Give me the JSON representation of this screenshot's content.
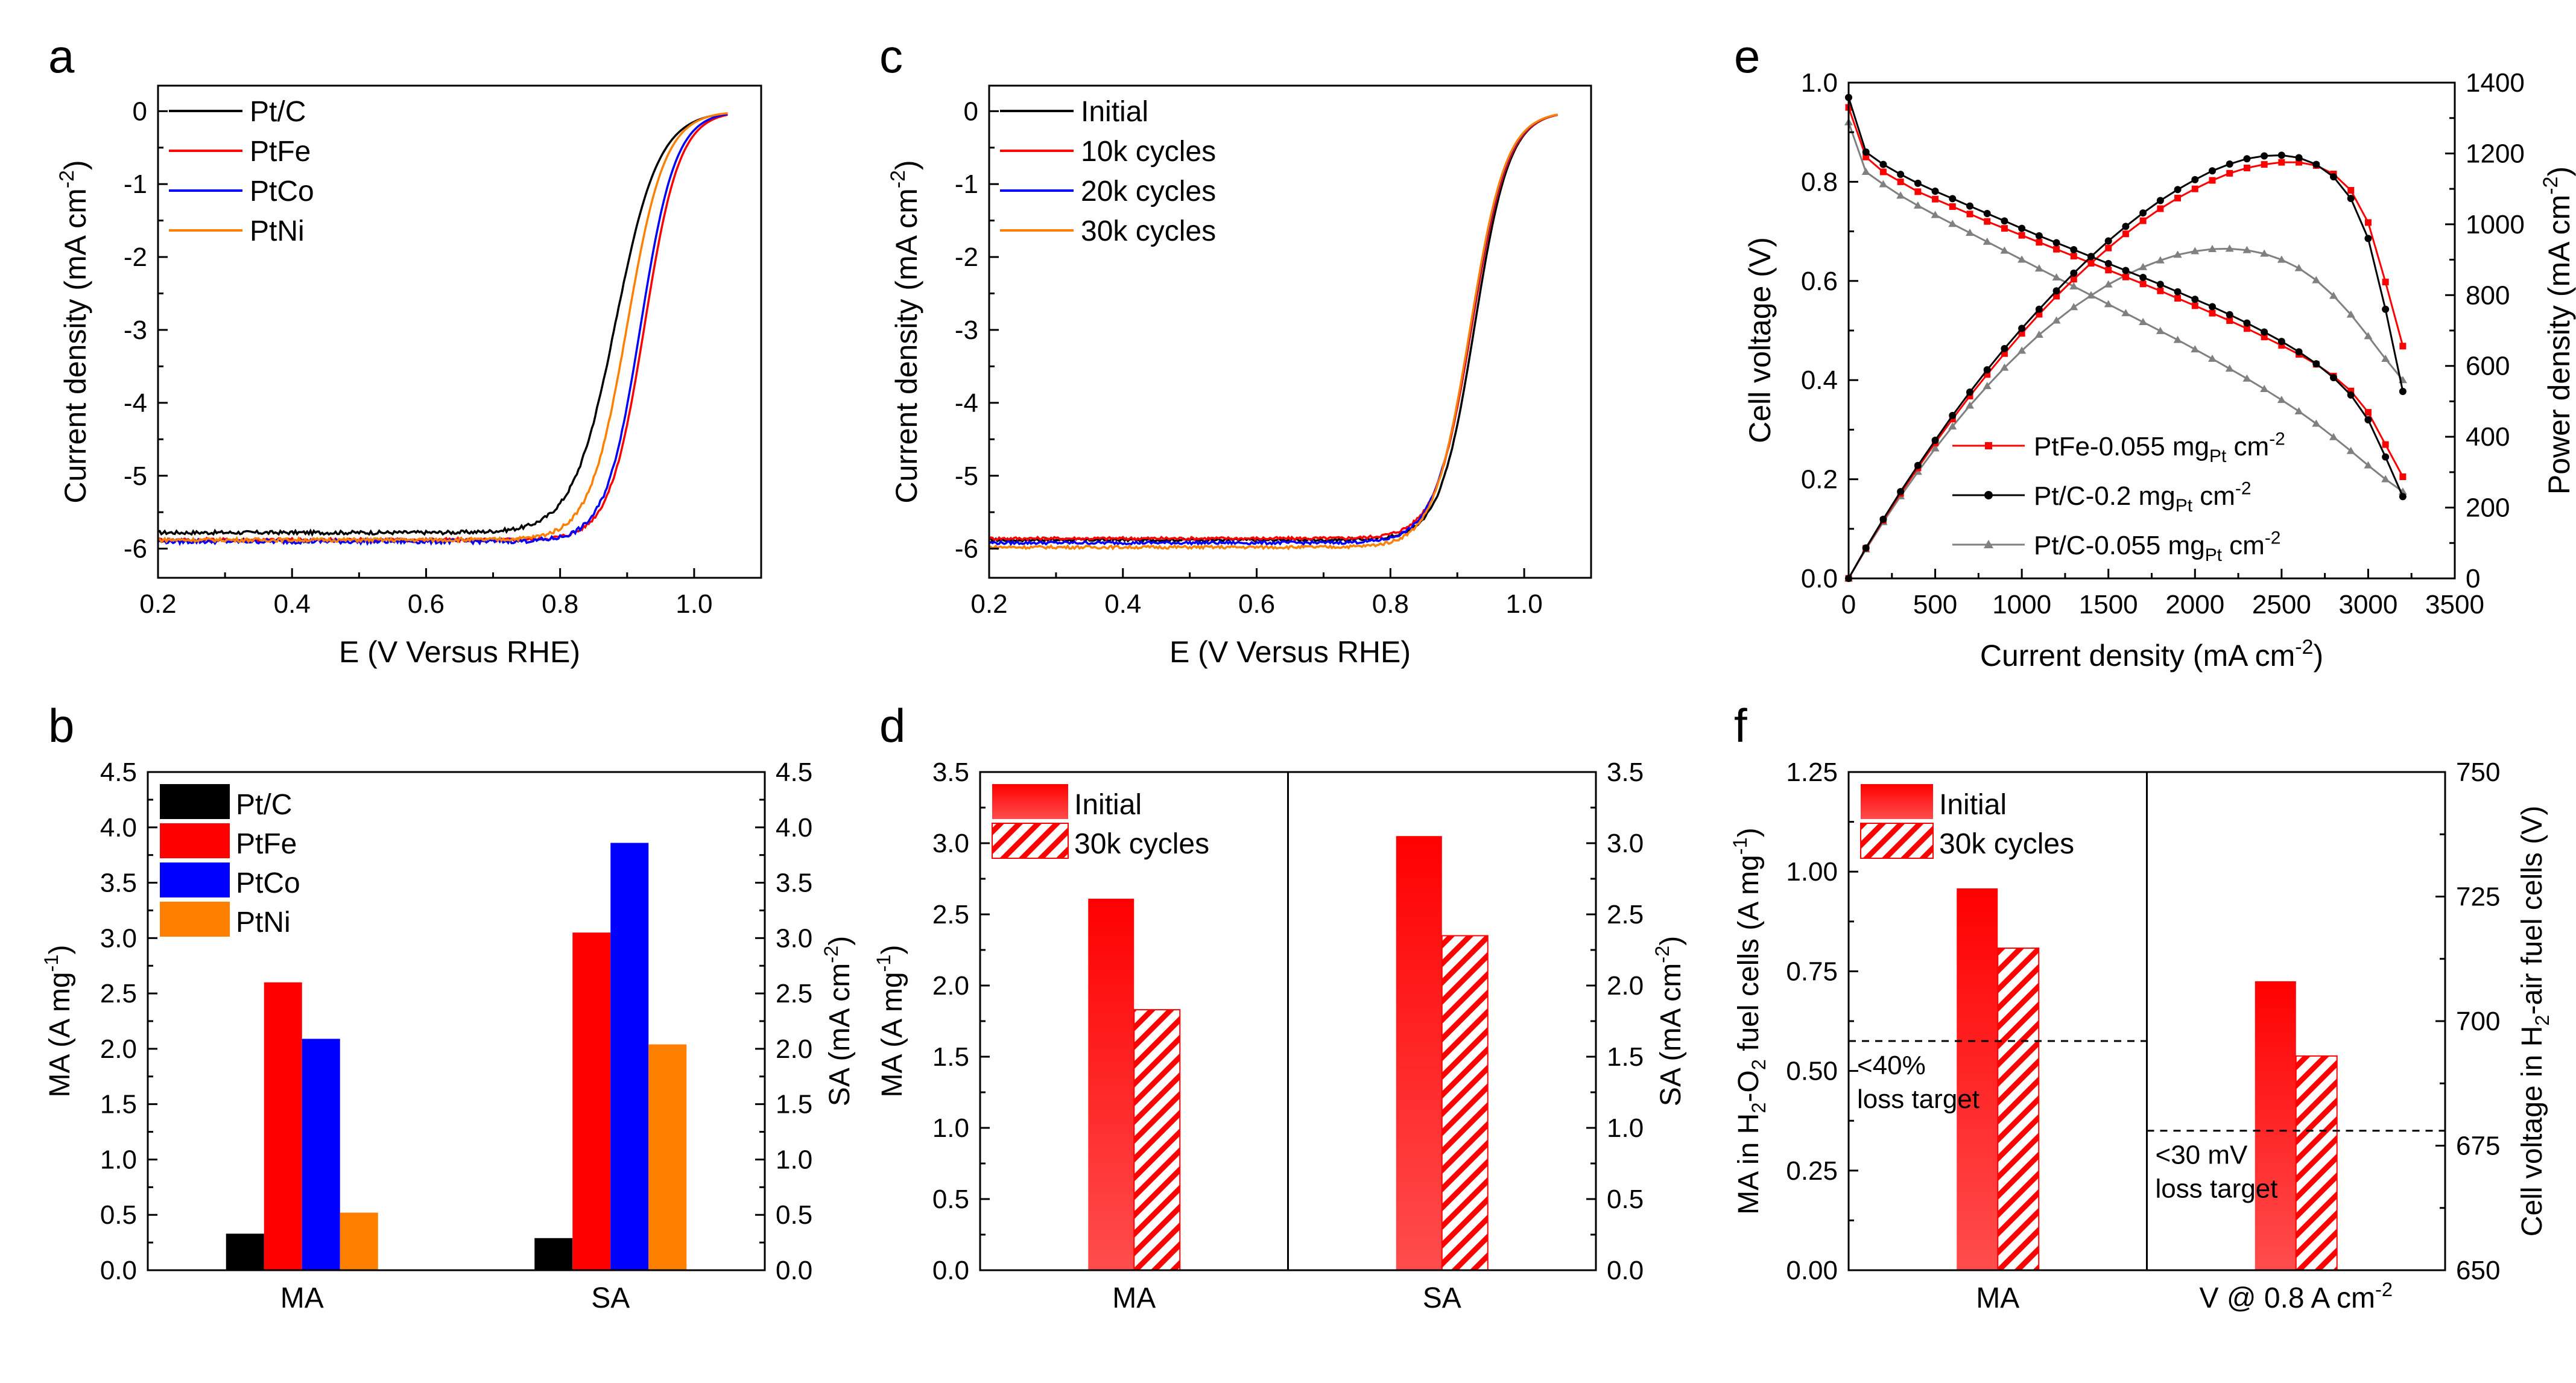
{
  "figure": {
    "panel_letters": [
      "a",
      "b",
      "c",
      "d",
      "e",
      "f"
    ]
  },
  "chart_data": [
    {
      "id": "a",
      "type": "line",
      "xlabel": "E (V Versus RHE)",
      "ylabel": "Current density (mA cm-2)",
      "xlim": [
        0.2,
        1.1
      ],
      "ylim": [
        -6.4,
        0.35
      ],
      "xticks": [
        "0.2",
        "0.4",
        "0.6",
        "0.8",
        "1.0"
      ],
      "xtick_values": [
        0.2,
        0.4,
        0.6,
        0.8,
        1.0
      ],
      "yticks": [
        "0",
        "-1",
        "-2",
        "-3",
        "-4",
        "-5",
        "-6"
      ],
      "ytick_values": [
        0,
        -1,
        -2,
        -3,
        -4,
        -5,
        -6
      ],
      "legend_position": "top-left",
      "series": [
        {
          "name": "Pt/C",
          "color": "#000000",
          "limit": -5.78,
          "half_wave": 0.883,
          "slope": 0.032,
          "x_start": 0.2,
          "x_end": 1.05,
          "noise": 0.025
        },
        {
          "name": "PtFe",
          "color": "#ff0000",
          "limit": -5.88,
          "half_wave": 0.926,
          "slope": 0.026,
          "x_start": 0.2,
          "x_end": 1.05,
          "noise": 0.025
        },
        {
          "name": "PtCo",
          "color": "#0000ff",
          "limit": -5.9,
          "half_wave": 0.92,
          "slope": 0.026,
          "x_start": 0.2,
          "x_end": 1.05,
          "noise": 0.03
        },
        {
          "name": "PtNi",
          "color": "#ff8000",
          "limit": -5.88,
          "half_wave": 0.9,
          "slope": 0.028,
          "x_start": 0.2,
          "x_end": 1.05,
          "noise": 0.025
        }
      ]
    },
    {
      "id": "c",
      "type": "line",
      "xlabel": "E (V Versus RHE)",
      "ylabel": "Current density (mA cm-2)",
      "xlim": [
        0.2,
        1.1
      ],
      "ylim": [
        -6.4,
        0.35
      ],
      "xticks": [
        "0.2",
        "0.4",
        "0.6",
        "0.8",
        "1.0"
      ],
      "xtick_values": [
        0.2,
        0.4,
        0.6,
        0.8,
        1.0
      ],
      "yticks": [
        "0",
        "-1",
        "-2",
        "-3",
        "-4",
        "-5",
        "-6"
      ],
      "ytick_values": [
        0,
        -1,
        -2,
        -3,
        -4,
        -5,
        -6
      ],
      "legend_position": "top-left",
      "series": [
        {
          "name": "Initial",
          "color": "#000000",
          "limit": -5.88,
          "half_wave": 0.926,
          "slope": 0.026,
          "x_start": 0.2,
          "x_end": 1.05,
          "noise": 0.02
        },
        {
          "name": "10k cycles",
          "color": "#ff0000",
          "limit": -5.86,
          "half_wave": 0.922,
          "slope": 0.027,
          "x_start": 0.2,
          "x_end": 1.05,
          "noise": 0.02
        },
        {
          "name": "20k cycles",
          "color": "#0000ff",
          "limit": -5.92,
          "half_wave": 0.92,
          "slope": 0.027,
          "x_start": 0.2,
          "x_end": 1.05,
          "noise": 0.02
        },
        {
          "name": "30k cycles",
          "color": "#ff8000",
          "limit": -5.98,
          "half_wave": 0.919,
          "slope": 0.027,
          "x_start": 0.2,
          "x_end": 1.05,
          "noise": 0.02
        }
      ]
    },
    {
      "id": "e",
      "type": "line",
      "xlabel": "Current density (mA cm-2)",
      "ylabel": "Cell voltage (V)",
      "ylabel_right": "Power density (mA cm-2)",
      "xlim": [
        0,
        3500
      ],
      "ylim": [
        0,
        1.0
      ],
      "ylim_right": [
        0,
        1400
      ],
      "xticks": [
        "0",
        "500",
        "1000",
        "1500",
        "2000",
        "2500",
        "3000",
        "3500"
      ],
      "xtick_values": [
        0,
        500,
        1000,
        1500,
        2000,
        2500,
        3000,
        3500
      ],
      "yticks": [
        "0.0",
        "0.2",
        "0.4",
        "0.6",
        "0.8",
        "1.0"
      ],
      "ytick_values": [
        0,
        0.2,
        0.4,
        0.6,
        0.8,
        1.0
      ],
      "yticks_right": [
        "0",
        "200",
        "400",
        "600",
        "800",
        "1000",
        "1200",
        "1400"
      ],
      "ytick_values_right": [
        0,
        200,
        400,
        600,
        800,
        1000,
        1200,
        1400
      ],
      "legend_position": "bottom-left",
      "current_density": [
        0,
        100,
        200,
        300,
        400,
        500,
        600,
        700,
        800,
        900,
        1000,
        1100,
        1200,
        1300,
        1400,
        1500,
        1600,
        1700,
        1800,
        1900,
        2000,
        2100,
        2200,
        2300,
        2400,
        2500,
        2600,
        2700,
        2800,
        2900,
        3000,
        3100,
        3200
      ],
      "series": [
        {
          "name": "PtFe-0.055 mgPt cm-2",
          "name_main": "PtFe-0.055 mg",
          "name_sub": "Pt",
          "name_tail": " cm",
          "name_sup": "-2",
          "color": "#ff0000",
          "marker": "square",
          "voltage": [
            0.95,
            0.85,
            0.82,
            0.8,
            0.78,
            0.765,
            0.75,
            0.735,
            0.72,
            0.706,
            0.692,
            0.678,
            0.664,
            0.65,
            0.636,
            0.622,
            0.608,
            0.594,
            0.58,
            0.565,
            0.55,
            0.535,
            0.52,
            0.504,
            0.487,
            0.47,
            0.452,
            0.432,
            0.408,
            0.378,
            0.335,
            0.27,
            0.205
          ],
          "power": [
            0,
            85,
            164,
            240,
            312,
            383,
            450,
            515,
            576,
            635,
            692,
            746,
            797,
            845,
            890,
            933,
            973,
            1010,
            1044,
            1074,
            1100,
            1124,
            1144,
            1159,
            1169,
            1175,
            1175,
            1166,
            1142,
            1096,
            1005,
            837,
            656
          ]
        },
        {
          "name": "Pt/C-0.2 mgPt cm-2",
          "name_main": "Pt/C-0.2 mg",
          "name_sub": "Pt",
          "name_tail": " cm",
          "name_sup": "-2",
          "color": "#000000",
          "marker": "circle",
          "voltage": [
            0.97,
            0.86,
            0.835,
            0.815,
            0.797,
            0.781,
            0.766,
            0.751,
            0.736,
            0.721,
            0.706,
            0.691,
            0.677,
            0.663,
            0.649,
            0.635,
            0.621,
            0.607,
            0.593,
            0.578,
            0.563,
            0.548,
            0.532,
            0.515,
            0.497,
            0.478,
            0.457,
            0.433,
            0.405,
            0.37,
            0.32,
            0.245,
            0.165
          ],
          "power": [
            0,
            86,
            167,
            245,
            319,
            390,
            460,
            526,
            589,
            649,
            706,
            760,
            812,
            862,
            909,
            953,
            994,
            1032,
            1067,
            1098,
            1126,
            1151,
            1170,
            1185,
            1193,
            1195,
            1188,
            1169,
            1134,
            1073,
            960,
            760,
            528
          ]
        },
        {
          "name": "Pt/C-0.055 mgPt cm-2",
          "name_main": "Pt/C-0.055 mg",
          "name_sub": "Pt",
          "name_tail": " cm",
          "name_sup": "-2",
          "color": "#808080",
          "marker": "triangle",
          "voltage": [
            0.92,
            0.82,
            0.795,
            0.772,
            0.752,
            0.733,
            0.715,
            0.697,
            0.679,
            0.661,
            0.643,
            0.625,
            0.607,
            0.589,
            0.571,
            0.553,
            0.535,
            0.517,
            0.499,
            0.481,
            0.462,
            0.443,
            0.423,
            0.403,
            0.382,
            0.36,
            0.337,
            0.312,
            0.285,
            0.257,
            0.228,
            0.2,
            0.175
          ],
          "power": [
            0,
            82,
            159,
            232,
            301,
            367,
            429,
            488,
            543,
            595,
            643,
            688,
            728,
            766,
            799,
            830,
            856,
            879,
            898,
            914,
            924,
            930,
            931,
            927,
            917,
            900,
            876,
            842,
            798,
            745,
            684,
            620,
            560
          ]
        }
      ]
    },
    {
      "id": "b",
      "type": "bar",
      "categories": [
        "MA",
        "SA"
      ],
      "ylabel": "MA (A mg-1)",
      "ylabel_right": "SA (mA cm-2)",
      "ylim": [
        0,
        4.5
      ],
      "ylim_right": [
        0,
        4.5
      ],
      "yticks": [
        "0.0",
        "0.5",
        "1.0",
        "1.5",
        "2.0",
        "2.5",
        "3.0",
        "3.5",
        "4.0",
        "4.5"
      ],
      "ytick_values": [
        0,
        0.5,
        1.0,
        1.5,
        2.0,
        2.5,
        3.0,
        3.5,
        4.0,
        4.5
      ],
      "yticks_right": [
        "0.0",
        "0.5",
        "1.0",
        "1.5",
        "2.0",
        "2.5",
        "3.0",
        "3.5",
        "4.0",
        "4.5"
      ],
      "legend_position": "top-left",
      "series": [
        {
          "name": "Pt/C",
          "color": "#000000",
          "values": [
            0.33,
            0.29
          ]
        },
        {
          "name": "PtFe",
          "color": "#ff0000",
          "values": [
            2.6,
            3.05
          ]
        },
        {
          "name": "PtCo",
          "color": "#0000ff",
          "values": [
            2.09,
            3.86
          ]
        },
        {
          "name": "PtNi",
          "color": "#ff8000",
          "values": [
            0.52,
            2.04
          ]
        }
      ]
    },
    {
      "id": "d",
      "type": "bar",
      "categories": [
        "MA",
        "SA"
      ],
      "ylabel": "MA (A mg-1)",
      "ylabel_right": "SA (mA cm-2)",
      "ylim": [
        0,
        3.5
      ],
      "ylim_right": [
        0,
        3.5
      ],
      "yticks": [
        "0.0",
        "0.5",
        "1.0",
        "1.5",
        "2.0",
        "2.5",
        "3.0",
        "3.5"
      ],
      "ytick_values": [
        0,
        0.5,
        1.0,
        1.5,
        2.0,
        2.5,
        3.0,
        3.5
      ],
      "yticks_right": [
        "0.0",
        "0.5",
        "1.0",
        "1.5",
        "2.0",
        "2.5",
        "3.0",
        "3.5"
      ],
      "divider": true,
      "legend_position": "top-left",
      "series": [
        {
          "name": "Initial",
          "color": "#ff0000",
          "pattern": "solid",
          "values": [
            2.61,
            3.05
          ]
        },
        {
          "name": "30k cycles",
          "color": "#ff0000",
          "pattern": "hatch",
          "values": [
            1.83,
            2.35
          ]
        }
      ]
    },
    {
      "id": "f",
      "type": "bar",
      "categories": [
        "MA",
        "V @ 0.8 A cm-2"
      ],
      "category_labels": [
        {
          "main": "MA",
          "sup": ""
        },
        {
          "main": "V @ 0.8 A cm",
          "sup": "-2"
        }
      ],
      "ylabel": "MA in H2-O2 fuel cells (A mg-1)",
      "ylabel_right": "Cell voltage in H2-air fuel cells (V)",
      "ylim": [
        0,
        1.25
      ],
      "ylim_right": [
        650,
        750
      ],
      "yticks": [
        "0.00",
        "0.25",
        "0.50",
        "0.75",
        "1.00",
        "1.25"
      ],
      "ytick_values": [
        0,
        0.25,
        0.5,
        0.75,
        1.0,
        1.25
      ],
      "yticks_right": [
        "650",
        "675",
        "700",
        "725",
        "750"
      ],
      "ytick_values_right": [
        650,
        675,
        700,
        725,
        750
      ],
      "divider": true,
      "legend_position": "top-left",
      "series": [
        {
          "name": "Initial",
          "color": "#ff0000",
          "pattern": "solid",
          "values": [
            0.958,
            708
          ]
        },
        {
          "name": "30k cycles",
          "color": "#ff0000",
          "pattern": "hatch",
          "values": [
            0.808,
            693
          ]
        }
      ],
      "targets": [
        {
          "group": 0,
          "value": 0.575,
          "axis": "left",
          "label_lines": [
            "<40%",
            "loss target"
          ]
        },
        {
          "group": 1,
          "value": 678,
          "axis": "right",
          "label_lines": [
            "<30 mV",
            "loss target"
          ]
        }
      ]
    }
  ]
}
